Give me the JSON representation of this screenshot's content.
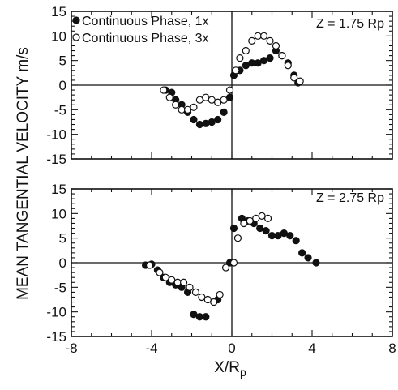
{
  "ylabel": "MEAN TANGENTIAL VELOCITY m/s",
  "xlabel": "X/R",
  "xlabel_sub": "p",
  "legend": [
    {
      "label": "Continuous Phase, 1x",
      "marker": "filled-circle"
    },
    {
      "label": "Continuous Phase, 3x",
      "marker": "open-circle"
    }
  ],
  "chart_data": [
    {
      "type": "scatter",
      "annotation": "Z = 1.75 Rp",
      "xlim": [
        -8,
        8
      ],
      "ylim": [
        -15,
        15
      ],
      "x_ticks": [
        -8,
        -4,
        0,
        4,
        8
      ],
      "y_ticks": [
        -15,
        -10,
        -5,
        0,
        5,
        10,
        15
      ],
      "grid": false,
      "legend_position": "top-left",
      "series": [
        {
          "name": "Continuous Phase, 1x",
          "marker": "filled",
          "points": [
            [
              -3.3,
              -1
            ],
            [
              -3.0,
              -1.5
            ],
            [
              -2.8,
              -3
            ],
            [
              -2.5,
              -4
            ],
            [
              -2.2,
              -5.5
            ],
            [
              -1.9,
              -7
            ],
            [
              -1.6,
              -8
            ],
            [
              -1.3,
              -7.8
            ],
            [
              -1.0,
              -7.5
            ],
            [
              -0.7,
              -7
            ],
            [
              -0.4,
              -5.5
            ],
            [
              -0.1,
              -2.5
            ],
            [
              0.1,
              2
            ],
            [
              0.4,
              3
            ],
            [
              0.7,
              4
            ],
            [
              1.0,
              4.5
            ],
            [
              1.3,
              4.5
            ],
            [
              1.6,
              5
            ],
            [
              1.9,
              5.5
            ],
            [
              2.2,
              7
            ],
            [
              2.5,
              6
            ],
            [
              2.8,
              4.5
            ],
            [
              3.1,
              2
            ],
            [
              3.3,
              0.5
            ]
          ]
        },
        {
          "name": "Continuous Phase, 3x",
          "marker": "open",
          "points": [
            [
              -3.4,
              -1
            ],
            [
              -3.1,
              -2.5
            ],
            [
              -2.8,
              -4
            ],
            [
              -2.5,
              -5
            ],
            [
              -2.2,
              -5
            ],
            [
              -1.9,
              -4.5
            ],
            [
              -1.6,
              -3
            ],
            [
              -1.3,
              -2.5
            ],
            [
              -1.0,
              -3
            ],
            [
              -0.7,
              -3.5
            ],
            [
              -0.4,
              -3
            ],
            [
              -0.1,
              -1
            ],
            [
              0.2,
              3
            ],
            [
              0.4,
              5.5
            ],
            [
              0.7,
              7
            ],
            [
              1.0,
              9
            ],
            [
              1.3,
              10
            ],
            [
              1.6,
              10
            ],
            [
              1.9,
              9
            ],
            [
              2.2,
              8
            ],
            [
              2.5,
              6
            ],
            [
              2.8,
              4
            ],
            [
              3.1,
              1.5
            ],
            [
              3.4,
              0.8
            ]
          ]
        }
      ]
    },
    {
      "type": "scatter",
      "annotation": "Z = 2.75 Rp",
      "xlim": [
        -8,
        8
      ],
      "ylim": [
        -15,
        15
      ],
      "x_ticks": [
        -8,
        -4,
        0,
        4,
        8
      ],
      "y_ticks": [
        -15,
        -10,
        -5,
        0,
        5,
        10,
        15
      ],
      "grid": false,
      "series": [
        {
          "name": "Continuous Phase, 1x",
          "marker": "filled",
          "points": [
            [
              -4.3,
              -0.5
            ],
            [
              -4.0,
              -0.3
            ],
            [
              -3.7,
              -1.5
            ],
            [
              -3.4,
              -3
            ],
            [
              -3.1,
              -4
            ],
            [
              -2.8,
              -4.5
            ],
            [
              -2.5,
              -5
            ],
            [
              -2.2,
              -6
            ],
            [
              -1.9,
              -10.5
            ],
            [
              -1.6,
              -11
            ],
            [
              -1.3,
              -11
            ],
            [
              -0.7,
              -7.5
            ],
            [
              -0.1,
              0
            ],
            [
              0.1,
              7
            ],
            [
              0.5,
              9
            ],
            [
              0.8,
              8.5
            ],
            [
              1.1,
              8
            ],
            [
              1.4,
              7
            ],
            [
              1.7,
              6.5
            ],
            [
              2.0,
              5.5
            ],
            [
              2.3,
              5.5
            ],
            [
              2.6,
              6
            ],
            [
              2.9,
              5.5
            ],
            [
              3.2,
              4.5
            ],
            [
              3.5,
              2
            ],
            [
              3.8,
              1
            ],
            [
              4.2,
              0
            ]
          ]
        },
        {
          "name": "Continuous Phase, 3x",
          "marker": "open",
          "points": [
            [
              -4.1,
              -0.5
            ],
            [
              -3.6,
              -2
            ],
            [
              -3.3,
              -3
            ],
            [
              -3.0,
              -3.5
            ],
            [
              -2.7,
              -4
            ],
            [
              -2.4,
              -4
            ],
            [
              -2.1,
              -5
            ],
            [
              -1.8,
              -6
            ],
            [
              -1.5,
              -7
            ],
            [
              -1.2,
              -7.5
            ],
            [
              -0.9,
              -8
            ],
            [
              -0.6,
              -6.5
            ],
            [
              -0.3,
              -1
            ],
            [
              0.1,
              0
            ],
            [
              0.3,
              5
            ],
            [
              0.6,
              8
            ],
            [
              0.9,
              8.5
            ],
            [
              1.2,
              9
            ],
            [
              1.5,
              9.5
            ],
            [
              1.8,
              9
            ]
          ]
        }
      ]
    }
  ]
}
